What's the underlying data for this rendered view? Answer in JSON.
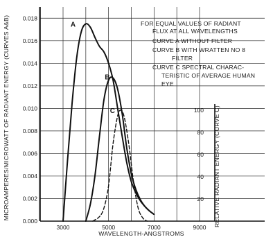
{
  "chart_data": {
    "type": "line",
    "title": "",
    "xlabel": "WAVELENGTH-ANGSTROMS",
    "ylabel": "MICROAMPERES/MICROWATT OF RADIANT ENERGY (CURVES A&B)",
    "y2label": "RELATIVE RADIANT ENERGY (CURVE C)",
    "xlim": [
      1000,
      9000
    ],
    "ylim": [
      0,
      0.019
    ],
    "y2lim": [
      0,
      100
    ],
    "grid": true,
    "x_ticks": [
      {
        "value": 3000,
        "label": "3000"
      },
      {
        "value": 5000,
        "label": "5000"
      },
      {
        "value": 7000,
        "label": "7000"
      },
      {
        "value": 9000,
        "label": "9000"
      }
    ],
    "y_ticks": [
      {
        "value": 0,
        "label": "0.000"
      },
      {
        "value": 0.002,
        "label": "0.002"
      },
      {
        "value": 0.004,
        "label": "0.004"
      },
      {
        "value": 0.006,
        "label": "0.006"
      },
      {
        "value": 0.008,
        "label": "0.008"
      },
      {
        "value": 0.01,
        "label": "0.010"
      },
      {
        "value": 0.012,
        "label": "0.012"
      },
      {
        "value": 0.014,
        "label": "0.014"
      },
      {
        "value": 0.016,
        "label": "0.016"
      },
      {
        "value": 0.018,
        "label": "0.018"
      }
    ],
    "y2_ticks": [
      {
        "value": 20,
        "label": "20"
      },
      {
        "value": 40,
        "label": "40"
      },
      {
        "value": 60,
        "label": "60"
      },
      {
        "value": 80,
        "label": "80"
      },
      {
        "value": 100,
        "label": "100"
      }
    ],
    "annotations": [
      "FOR EQUAL VALUES OF RADIANT",
      "FLUX AT ALL WAVELENGTHS",
      "CURVE A WITHOUT FILTER",
      "CURVE B WITH WRATTEN NO 8",
      "FILTER",
      "CURVE C SPECTRAL CHARAC-",
      "TERISTIC OF AVERAGE HUMAN",
      "EYE"
    ],
    "series": [
      {
        "name": "A",
        "axis": "left",
        "style": "solid",
        "x": [
          3000,
          3200,
          3400,
          3600,
          3800,
          4000,
          4200,
          4400,
          4600,
          4800,
          5000,
          5200,
          5400,
          5600,
          5800,
          6000,
          6200,
          6400,
          6600,
          6800,
          7000
        ],
        "y": [
          0.0,
          0.0055,
          0.0105,
          0.0145,
          0.0168,
          0.0175,
          0.0172,
          0.0163,
          0.0155,
          0.015,
          0.014,
          0.0125,
          0.01,
          0.0075,
          0.0052,
          0.0035,
          0.0025,
          0.0018,
          0.0013,
          0.0009,
          0.0006
        ]
      },
      {
        "name": "B",
        "axis": "left",
        "style": "solid",
        "x": [
          4000,
          4200,
          4400,
          4600,
          4800,
          5000,
          5200,
          5400,
          5600,
          5800,
          6000,
          6200,
          6400,
          6600,
          6800,
          7000
        ],
        "y": [
          0.0,
          0.0015,
          0.004,
          0.0075,
          0.0108,
          0.0125,
          0.0127,
          0.0117,
          0.0095,
          0.0065,
          0.0042,
          0.0028,
          0.0019,
          0.0013,
          0.0009,
          0.0006
        ]
      },
      {
        "name": "C",
        "axis": "right",
        "style": "dashed",
        "x": [
          4300,
          4600,
          4800,
          5000,
          5200,
          5400,
          5550,
          5700,
          5900,
          6100,
          6300,
          6500,
          6700
        ],
        "y": [
          0,
          4,
          12,
          32,
          70,
          95,
          100,
          93,
          68,
          35,
          12,
          3,
          0
        ]
      }
    ]
  }
}
